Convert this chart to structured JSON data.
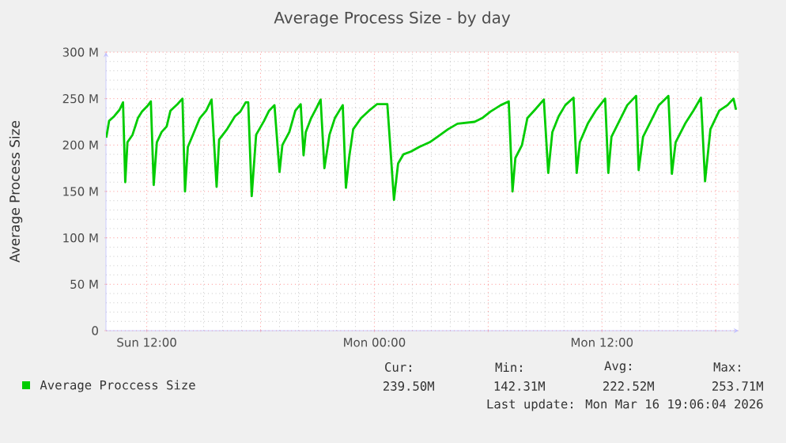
{
  "chart_data": {
    "type": "line",
    "title": "Average Process Size - by day",
    "ylabel": "Average Process Size",
    "xlim": [
      "2026-03-15T09:51",
      "2026-03-16T19:12"
    ],
    "ylim": [
      0,
      300
    ],
    "xticks": [
      {
        "value": "2026-03-15T12:00",
        "label": "Sun 12:00"
      },
      {
        "value": "2026-03-15T18:00",
        "label": null
      },
      {
        "value": "2026-03-16T00:00",
        "label": "Mon 00:00"
      },
      {
        "value": "2026-03-16T06:00",
        "label": null
      },
      {
        "value": "2026-03-16T12:00",
        "label": "Mon 12:00"
      },
      {
        "value": "2026-03-16T18:00",
        "label": null
      }
    ],
    "yticks": [
      0,
      {
        "value": 50,
        "label": "50 M"
      },
      {
        "value": 100,
        "label": "100 M"
      },
      {
        "value": 150,
        "label": "150 M"
      },
      {
        "value": 200,
        "label": "200 M"
      },
      {
        "value": 250,
        "label": "250 M"
      },
      {
        "value": 300,
        "label": "300 M"
      }
    ],
    "grid": true,
    "legend": "bottom",
    "annotations": [
      "Cur:",
      "Min:",
      "Avg:",
      "Max:",
      "239.50M",
      "142.31M",
      "222.52M",
      "253.71M",
      "Last update: Mon Mar 16 19:06:04 2026"
    ],
    "series": [
      {
        "name": "Average Proccess Size",
        "color": "#00cc00",
        "x": [
          "2026-03-15T09:52",
          "2026-03-15T10:01",
          "2026-03-15T10:17",
          "2026-03-15T10:34",
          "2026-03-15T10:45",
          "2026-03-15T10:52",
          "2026-03-15T10:59",
          "2026-03-15T11:15",
          "2026-03-15T11:32",
          "2026-03-15T11:45",
          "2026-03-15T12:02",
          "2026-03-15T12:13",
          "2026-03-15T12:22",
          "2026-03-15T12:32",
          "2026-03-15T12:47",
          "2026-03-15T13:03",
          "2026-03-15T13:15",
          "2026-03-15T13:37",
          "2026-03-15T13:53",
          "2026-03-15T14:01",
          "2026-03-15T14:10",
          "2026-03-15T14:26",
          "2026-03-15T14:48",
          "2026-03-15T15:08",
          "2026-03-15T15:25",
          "2026-03-15T15:41",
          "2026-03-15T15:49",
          "2026-03-15T16:14",
          "2026-03-15T16:39",
          "2026-03-15T16:56",
          "2026-03-15T17:13",
          "2026-03-15T17:21",
          "2026-03-15T17:32",
          "2026-03-15T17:46",
          "2026-03-15T18:11",
          "2026-03-15T18:27",
          "2026-03-15T18:44",
          "2026-03-15T19:00",
          "2026-03-15T19:09",
          "2026-03-15T19:31",
          "2026-03-15T19:50",
          "2026-03-15T20:07",
          "2026-03-15T20:16",
          "2026-03-15T20:23",
          "2026-03-15T20:40",
          "2026-03-15T20:57",
          "2026-03-15T21:10",
          "2026-03-15T21:22",
          "2026-03-15T21:38",
          "2026-03-15T21:55",
          "2026-03-15T22:20",
          "2026-03-15T22:30",
          "2026-03-15T22:40",
          "2026-03-15T22:53",
          "2026-03-15T23:18",
          "2026-03-15T23:43",
          "2026-03-16T00:08",
          "2026-03-16T00:41",
          "2026-03-16T01:02",
          "2026-03-16T01:15",
          "2026-03-16T01:32",
          "2026-03-16T01:56",
          "2026-03-16T02:22",
          "2026-03-16T02:55",
          "2026-03-16T03:20",
          "2026-03-16T03:53",
          "2026-03-16T04:23",
          "2026-03-16T05:17",
          "2026-03-16T05:41",
          "2026-03-16T06:07",
          "2026-03-16T06:40",
          "2026-03-16T07:05",
          "2026-03-16T07:17",
          "2026-03-16T07:26",
          "2026-03-16T07:47",
          "2026-03-16T08:04",
          "2026-03-16T08:28",
          "2026-03-16T08:56",
          "2026-03-16T09:10",
          "2026-03-16T09:23",
          "2026-03-16T09:43",
          "2026-03-16T10:04",
          "2026-03-16T10:30",
          "2026-03-16T10:40",
          "2026-03-16T10:50",
          "2026-03-16T11:15",
          "2026-03-16T11:40",
          "2026-03-16T12:10",
          "2026-03-16T12:20",
          "2026-03-16T12:30",
          "2026-03-16T12:55",
          "2026-03-16T13:20",
          "2026-03-16T13:48",
          "2026-03-16T13:56",
          "2026-03-16T14:10",
          "2026-03-16T14:35",
          "2026-03-16T15:00",
          "2026-03-16T15:30",
          "2026-03-16T15:41",
          "2026-03-16T15:53",
          "2026-03-16T16:23",
          "2026-03-16T16:49",
          "2026-03-16T17:13",
          "2026-03-16T17:26",
          "2026-03-16T17:43",
          "2026-03-16T18:11",
          "2026-03-16T18:37",
          "2026-03-16T18:56",
          "2026-03-16T19:04"
        ],
        "values": [
          208,
          226,
          231,
          238,
          246,
          160,
          203,
          211,
          229,
          236,
          242,
          247,
          157,
          203,
          214,
          220,
          237,
          244,
          250,
          150,
          198,
          211,
          229,
          237,
          249,
          155,
          206,
          217,
          231,
          236,
          246,
          246,
          145,
          211,
          226,
          237,
          243,
          171,
          200,
          214,
          237,
          244,
          189,
          214,
          229,
          240,
          249,
          175,
          211,
          229,
          243,
          154,
          186,
          217,
          229,
          237,
          244,
          244,
          141,
          180,
          190,
          193,
          198,
          203,
          209,
          217,
          223,
          225,
          229,
          236,
          243,
          247,
          150,
          186,
          200,
          229,
          238,
          249,
          170,
          214,
          231,
          243,
          251,
          170,
          203,
          223,
          237,
          250,
          170,
          209,
          226,
          243,
          253,
          173,
          209,
          226,
          243,
          253,
          169,
          203,
          223,
          237,
          251,
          161,
          217,
          237,
          243,
          250,
          238
        ]
      }
    ]
  }
}
